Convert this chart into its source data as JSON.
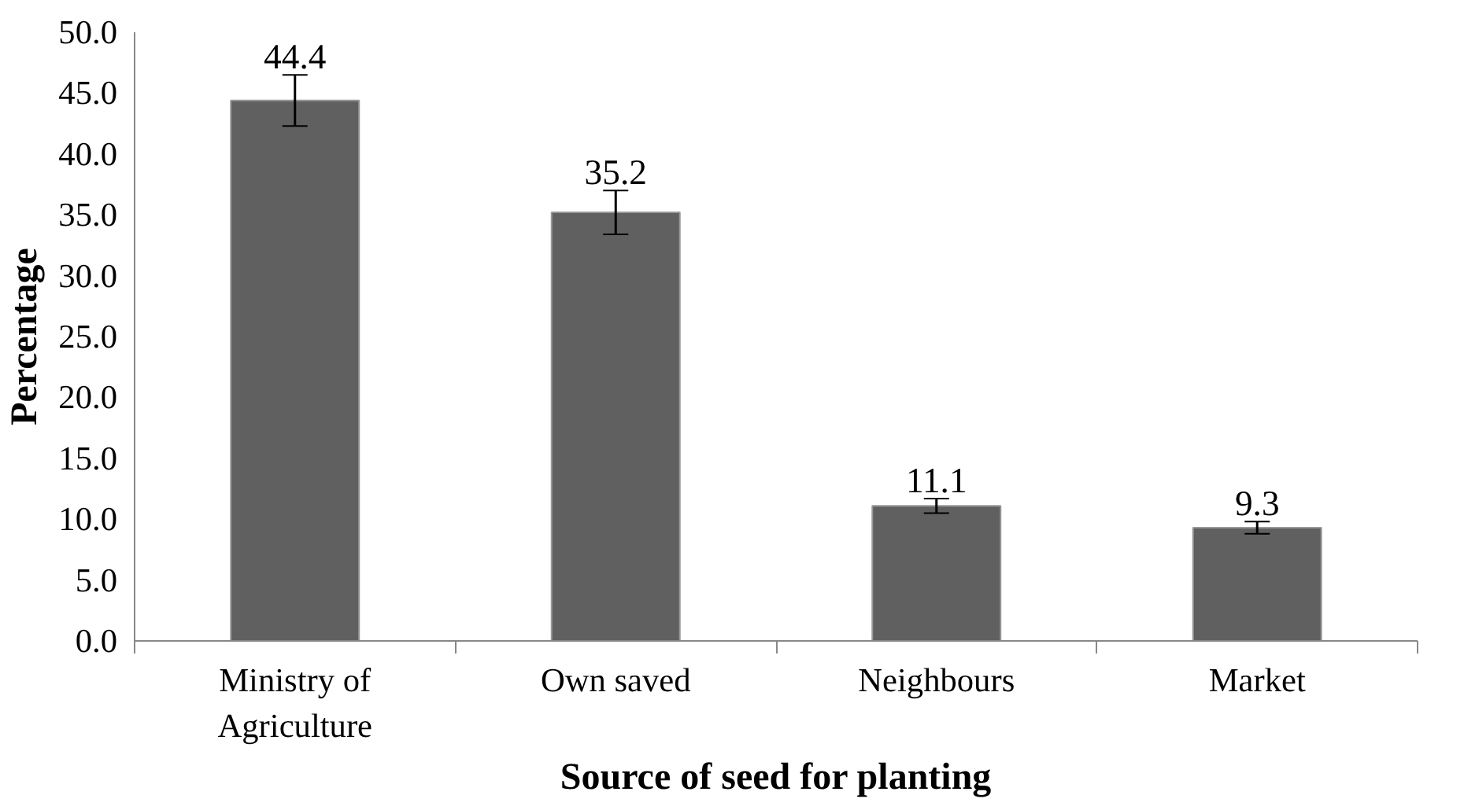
{
  "chart_data": {
    "type": "bar",
    "xlabel": "Source of seed for planting",
    "ylabel": "Percentage",
    "categories": [
      "Ministry of Agriculture",
      "Own saved",
      "Neighbours",
      "Market"
    ],
    "values": [
      44.4,
      35.2,
      11.1,
      9.3
    ],
    "errors": [
      2.1,
      1.8,
      0.6,
      0.5
    ],
    "color": "#606060",
    "data_labels": true,
    "ylim": [
      0,
      50
    ],
    "yticks": [
      {
        "value": 0,
        "label": "0.0"
      },
      {
        "value": 5,
        "label": "5.0"
      },
      {
        "value": 10,
        "label": "10.0"
      },
      {
        "value": 15,
        "label": "15.0"
      },
      {
        "value": 20,
        "label": "20.0"
      },
      {
        "value": 25,
        "label": "25.0"
      },
      {
        "value": 30,
        "label": "30.0"
      },
      {
        "value": 35,
        "label": "35.0"
      },
      {
        "value": 40,
        "label": "40.0"
      },
      {
        "value": 45,
        "label": "45.0"
      },
      {
        "value": 50,
        "label": "50.0"
      }
    ],
    "grid": false
  }
}
